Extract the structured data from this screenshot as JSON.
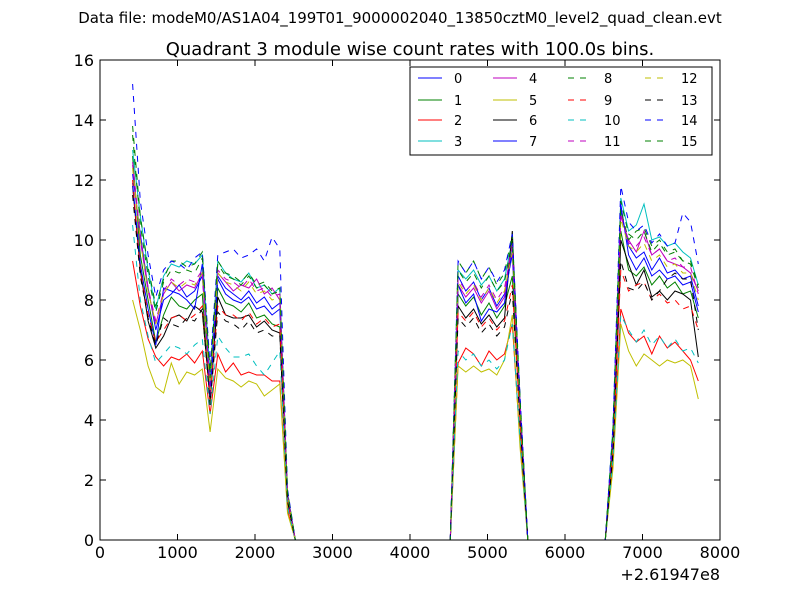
{
  "suptitle": "Data file: modeM0/AS1A04_199T01_9000002040_13850cztM0_level2_quad_clean.evt",
  "chart_data": {
    "type": "line",
    "title": "Quadrant 3 module wise count rates with 100.0s bins.",
    "xlabel": "",
    "ylabel": "",
    "xlim": [
      0,
      8000
    ],
    "ylim": [
      0,
      16
    ],
    "xticks": [
      0,
      1000,
      2000,
      3000,
      4000,
      5000,
      6000,
      7000,
      8000
    ],
    "yticks": [
      0,
      2,
      4,
      6,
      8,
      10,
      12,
      14,
      16
    ],
    "x_offset_label": "+2.61947e8",
    "grid": false,
    "legend_position": "top-right",
    "x": [
      420,
      520,
      620,
      720,
      820,
      920,
      1020,
      1120,
      1220,
      1320,
      1420,
      1520,
      1620,
      1720,
      1820,
      1920,
      2020,
      2120,
      2220,
      2320,
      2420,
      2520,
      2620,
      4520,
      4620,
      4720,
      4820,
      4920,
      5020,
      5120,
      5220,
      5320,
      5420,
      5520,
      6520,
      6620,
      6720,
      6820,
      6920,
      7020,
      7120,
      7220,
      7320,
      7420,
      7520,
      7620,
      7720
    ],
    "series": [
      {
        "name": "0",
        "color": "#0000ff",
        "dash": "solid",
        "values": [
          12.2,
          10.2,
          8.4,
          7.0,
          8.0,
          8.2,
          8.5,
          8.1,
          8.3,
          8.8,
          5.2,
          8.8,
          8.4,
          8.2,
          8.0,
          8.3,
          7.9,
          8.1,
          7.7,
          7.9,
          1.5,
          0,
          0,
          0,
          8.8,
          8.3,
          8.6,
          8.0,
          8.4,
          7.8,
          8.2,
          9.5,
          4.5,
          0,
          0,
          3.5,
          11.0,
          9.8,
          9.4,
          9.6,
          9.0,
          9.4,
          8.9,
          9.0,
          8.7,
          8.8,
          7.8
        ]
      },
      {
        "name": "1",
        "color": "#008000",
        "dash": "solid",
        "values": [
          12.8,
          9.5,
          8.0,
          6.6,
          7.5,
          8.1,
          7.8,
          7.7,
          8.0,
          8.2,
          4.5,
          8.4,
          7.9,
          7.8,
          7.6,
          7.9,
          7.4,
          7.5,
          7.2,
          7.1,
          1.4,
          0,
          0,
          0,
          8.2,
          7.8,
          8.1,
          7.5,
          7.9,
          7.4,
          7.8,
          8.8,
          4.2,
          0,
          0,
          3.2,
          10.3,
          9.0,
          8.8,
          9.1,
          8.5,
          8.8,
          8.4,
          8.6,
          8.2,
          8.3,
          7.4
        ]
      },
      {
        "name": "2",
        "color": "#ff0000",
        "dash": "solid",
        "values": [
          9.3,
          7.8,
          6.7,
          6.1,
          5.8,
          6.1,
          6.0,
          6.2,
          5.9,
          6.3,
          4.2,
          6.2,
          5.6,
          5.9,
          5.5,
          5.6,
          5.5,
          5.5,
          5.3,
          5.3,
          1.0,
          0,
          0,
          0,
          5.9,
          6.4,
          6.2,
          5.8,
          6.3,
          6.0,
          6.2,
          7.2,
          3.3,
          0,
          0,
          2.6,
          7.7,
          6.9,
          6.6,
          6.8,
          6.2,
          6.8,
          6.4,
          6.6,
          6.3,
          6.0,
          5.3
        ]
      },
      {
        "name": "3",
        "color": "#00bfbf",
        "dash": "solid",
        "values": [
          13.0,
          10.8,
          9.0,
          7.7,
          8.8,
          9.2,
          9.1,
          9.3,
          9.2,
          9.5,
          5.5,
          9.3,
          8.9,
          8.7,
          8.6,
          8.9,
          8.4,
          8.5,
          8.2,
          8.4,
          1.6,
          0,
          0,
          0,
          9.0,
          8.7,
          9.0,
          8.5,
          8.8,
          8.3,
          8.7,
          10.0,
          4.7,
          0,
          0,
          3.8,
          11.4,
          10.3,
          10.5,
          11.2,
          10.0,
          10.1,
          9.8,
          9.9,
          9.6,
          9.4,
          8.5
        ]
      },
      {
        "name": "4",
        "color": "#bf00bf",
        "dash": "solid",
        "values": [
          12.5,
          10.0,
          8.3,
          7.2,
          8.2,
          8.6,
          8.3,
          8.5,
          8.4,
          8.9,
          5.0,
          8.9,
          8.6,
          8.3,
          8.5,
          8.4,
          8.7,
          8.2,
          8.4,
          8.0,
          1.5,
          0,
          0,
          0,
          8.5,
          8.1,
          8.4,
          7.9,
          8.3,
          7.7,
          8.1,
          10.1,
          4.6,
          0,
          0,
          3.5,
          10.8,
          10.0,
          9.6,
          10.3,
          9.5,
          9.7,
          9.3,
          9.2,
          9.1,
          8.9,
          8.3
        ]
      },
      {
        "name": "5",
        "color": "#bfbf00",
        "dash": "solid",
        "values": [
          8.0,
          7.0,
          5.8,
          5.1,
          4.9,
          5.9,
          5.2,
          5.6,
          5.5,
          5.7,
          3.6,
          5.7,
          5.4,
          5.3,
          5.1,
          5.3,
          5.2,
          4.8,
          5.0,
          5.2,
          0.9,
          0,
          0,
          0,
          5.8,
          5.6,
          5.8,
          5.6,
          5.7,
          5.5,
          6.0,
          7.5,
          3.1,
          0,
          0,
          2.4,
          7.2,
          6.3,
          5.8,
          6.2,
          6.0,
          5.8,
          6.0,
          5.9,
          6.0,
          5.8,
          4.7
        ]
      },
      {
        "name": "6",
        "color": "#000000",
        "dash": "solid",
        "values": [
          11.8,
          9.0,
          7.3,
          6.4,
          6.8,
          7.4,
          7.5,
          7.3,
          7.8,
          7.6,
          4.7,
          8.1,
          7.5,
          7.4,
          7.4,
          7.5,
          7.1,
          7.3,
          7.0,
          6.9,
          1.3,
          0,
          0,
          0,
          7.8,
          7.4,
          7.7,
          7.2,
          7.5,
          7.1,
          7.4,
          10.3,
          4.0,
          0,
          0,
          3.0,
          10.0,
          9.2,
          8.5,
          9.0,
          8.1,
          8.3,
          8.0,
          8.3,
          8.2,
          8.0,
          6.1
        ]
      },
      {
        "name": "7",
        "color": "#0000ff",
        "dash": "solid",
        "values": [
          11.9,
          9.2,
          7.7,
          6.5,
          8.4,
          8.3,
          8.2,
          8.0,
          7.7,
          9.2,
          4.8,
          8.7,
          8.2,
          8.0,
          7.9,
          8.1,
          7.7,
          7.8,
          7.5,
          7.7,
          1.4,
          0,
          0,
          0,
          8.5,
          7.9,
          8.2,
          7.3,
          7.7,
          7.6,
          7.9,
          9.7,
          4.3,
          0,
          0,
          3.4,
          11.2,
          9.5,
          9.0,
          9.4,
          8.8,
          9.0,
          8.7,
          8.8,
          8.5,
          8.6,
          7.6
        ]
      },
      {
        "name": "8",
        "color": "#008000",
        "dash": "dashed",
        "values": [
          13.8,
          10.8,
          9.1,
          7.8,
          8.7,
          9.3,
          9.3,
          9.1,
          9.2,
          9.6,
          5.6,
          9.2,
          8.8,
          8.7,
          8.5,
          8.8,
          8.4,
          8.5,
          8.2,
          8.3,
          1.6,
          0,
          0,
          0,
          9.3,
          8.9,
          9.3,
          8.7,
          9.1,
          8.5,
          8.9,
          10.2,
          4.8,
          0,
          0,
          3.7,
          11.0,
          10.0,
          10.3,
          10.4,
          9.8,
          10.0,
          9.6,
          9.7,
          9.3,
          9.3,
          8.5
        ]
      },
      {
        "name": "9",
        "color": "#ff0000",
        "dash": "dashed",
        "values": [
          12.0,
          9.0,
          7.5,
          6.6,
          7.0,
          7.4,
          7.5,
          7.3,
          7.5,
          7.8,
          4.6,
          7.8,
          7.5,
          7.5,
          7.3,
          7.6,
          7.2,
          7.4,
          7.1,
          7.2,
          1.3,
          0,
          0,
          0,
          7.6,
          7.3,
          7.6,
          7.1,
          7.4,
          7.0,
          7.3,
          8.5,
          4.0,
          0,
          0,
          3.0,
          9.0,
          8.3,
          8.5,
          8.6,
          8.0,
          8.2,
          7.9,
          8.0,
          7.7,
          7.8,
          7.0
        ]
      },
      {
        "name": "10",
        "color": "#00bfbf",
        "dash": "dashed",
        "values": [
          10.5,
          8.0,
          6.8,
          5.9,
          6.2,
          6.5,
          6.4,
          6.2,
          6.5,
          6.7,
          4.2,
          6.8,
          6.4,
          6.1,
          6.1,
          6.2,
          5.8,
          5.5,
          5.9,
          6.3,
          1.1,
          0,
          0,
          0,
          6.3,
          6.0,
          6.2,
          5.8,
          6.0,
          5.7,
          6.0,
          7.2,
          3.4,
          0,
          0,
          2.7,
          7.5,
          7.0,
          6.6,
          7.0,
          6.5,
          6.8,
          6.4,
          6.7,
          6.3,
          6.4,
          5.9
        ]
      },
      {
        "name": "11",
        "color": "#bf00bf",
        "dash": "dashed",
        "values": [
          12.6,
          10.1,
          8.4,
          7.3,
          8.3,
          8.7,
          8.5,
          8.7,
          8.6,
          9.0,
          5.1,
          9.0,
          8.7,
          8.6,
          8.4,
          8.7,
          8.3,
          8.4,
          8.1,
          8.2,
          1.5,
          0,
          0,
          0,
          8.7,
          8.3,
          8.6,
          8.1,
          8.5,
          8.0,
          8.4,
          9.8,
          4.5,
          0,
          0,
          3.5,
          10.9,
          9.9,
          9.8,
          10.1,
          9.5,
          9.7,
          9.3,
          9.4,
          9.1,
          9.1,
          8.2
        ]
      },
      {
        "name": "12",
        "color": "#bfbf00",
        "dash": "dashed",
        "values": [
          12.4,
          10.0,
          8.3,
          7.2,
          8.2,
          8.6,
          8.4,
          8.6,
          8.5,
          8.9,
          5.0,
          8.9,
          8.6,
          8.5,
          8.3,
          8.6,
          8.2,
          8.3,
          8.0,
          8.1,
          1.5,
          0,
          0,
          0,
          8.6,
          8.2,
          8.5,
          8.0,
          8.4,
          7.9,
          8.3,
          9.6,
          4.4,
          0,
          0,
          3.4,
          10.7,
          9.8,
          9.6,
          9.9,
          9.3,
          9.5,
          9.1,
          9.2,
          8.9,
          8.9,
          8.0
        ]
      },
      {
        "name": "13",
        "color": "#000000",
        "dash": "dashed",
        "values": [
          11.5,
          8.8,
          7.4,
          6.5,
          7.4,
          7.2,
          7.1,
          7.4,
          7.3,
          7.7,
          4.5,
          7.6,
          7.3,
          7.2,
          7.0,
          7.3,
          6.9,
          7.0,
          6.8,
          6.8,
          1.3,
          0,
          0,
          0,
          7.4,
          7.1,
          7.4,
          6.9,
          7.2,
          6.8,
          7.1,
          8.3,
          3.9,
          0,
          0,
          2.9,
          9.3,
          8.4,
          8.3,
          8.6,
          8.0,
          8.3,
          8.7,
          8.9,
          8.7,
          8.7,
          7.0
        ]
      },
      {
        "name": "14",
        "color": "#0000ff",
        "dash": "dashed",
        "values": [
          15.2,
          11.3,
          9.5,
          8.1,
          9.0,
          9.3,
          9.2,
          9.0,
          9.4,
          9.6,
          5.8,
          9.5,
          9.6,
          9.7,
          9.4,
          9.5,
          9.7,
          9.3,
          10.1,
          9.7,
          1.7,
          0,
          0,
          0,
          9.3,
          8.9,
          9.3,
          8.7,
          9.1,
          8.6,
          9.0,
          10.2,
          4.8,
          0,
          0,
          3.8,
          11.8,
          10.6,
          10.3,
          10.5,
          9.9,
          10.2,
          9.8,
          9.9,
          10.9,
          10.6,
          9.2
        ]
      },
      {
        "name": "15",
        "color": "#008000",
        "dash": "dashed",
        "values": [
          13.5,
          10.5,
          8.8,
          7.6,
          8.6,
          9.0,
          8.9,
          9.0,
          8.9,
          9.4,
          5.4,
          9.3,
          8.9,
          8.8,
          8.6,
          8.9,
          8.5,
          8.6,
          8.3,
          8.4,
          1.6,
          0,
          0,
          0,
          9.0,
          8.6,
          8.9,
          8.4,
          8.8,
          8.3,
          8.6,
          10.0,
          4.7,
          0,
          0,
          3.6,
          11.3,
          10.2,
          10.0,
          10.3,
          9.6,
          9.9,
          9.5,
          9.6,
          9.3,
          9.2,
          8.4
        ]
      }
    ]
  }
}
